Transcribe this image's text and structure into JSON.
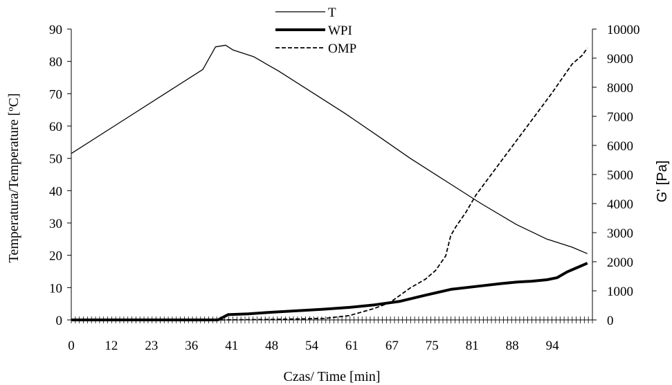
{
  "chart_data": {
    "type": "line",
    "xlabel": "Czas/ Time [min]",
    "ylabel_left": "Temperatura/Temperature [ºC]",
    "ylabel_right": "G' [Pa]",
    "x_tick_labels": [
      "0",
      "12",
      "23",
      "36",
      "41",
      "48",
      "54",
      "61",
      "67",
      "75",
      "81",
      "88",
      "94"
    ],
    "xlim": [
      0,
      103
    ],
    "ylim_left": [
      0,
      90
    ],
    "ylim_right": [
      0,
      10000
    ],
    "yticks_left": [
      0,
      10,
      20,
      30,
      40,
      50,
      60,
      70,
      80,
      90
    ],
    "yticks_right": [
      0,
      1000,
      2000,
      3000,
      4000,
      5000,
      6000,
      7000,
      8000,
      9000,
      10000
    ],
    "legend_position": "top-center",
    "series": [
      {
        "name": "T",
        "axis": "left",
        "style": "thin-solid",
        "x": [
          0,
          10,
          20,
          26,
          28.5,
          30.5,
          32,
          36,
          41,
          48,
          54,
          61,
          67,
          75,
          81,
          88,
          94,
          99,
          102
        ],
        "values": [
          51.5,
          61.5,
          71.5,
          77.5,
          84.5,
          85,
          83.5,
          81.5,
          77,
          70,
          64,
          56.5,
          50,
          42,
          36,
          29.5,
          25,
          22.5,
          20.5
        ]
      },
      {
        "name": "WPI",
        "axis": "right",
        "style": "thick-solid",
        "x": [
          0,
          29,
          31,
          35,
          40,
          45,
          50,
          55,
          60,
          65,
          70,
          75,
          80,
          85,
          88,
          91,
          94,
          96,
          98,
          100,
          102
        ],
        "values": [
          0,
          0,
          180,
          210,
          270,
          320,
          370,
          430,
          520,
          640,
          850,
          1050,
          1150,
          1250,
          1300,
          1330,
          1380,
          1450,
          1650,
          1800,
          1950
        ]
      },
      {
        "name": "OMP",
        "axis": "right",
        "style": "dashed",
        "x": [
          0,
          30,
          40,
          50,
          55,
          60,
          63,
          65,
          67,
          70,
          72,
          74,
          75,
          76,
          78,
          80,
          83,
          86,
          89,
          92,
          95,
          97,
          99,
          101,
          102
        ],
        "values": [
          0,
          0,
          20,
          50,
          150,
          400,
          600,
          850,
          1100,
          1400,
          1700,
          2200,
          2900,
          3200,
          3700,
          4300,
          5000,
          5700,
          6400,
          7100,
          7800,
          8300,
          8800,
          9100,
          9350
        ]
      }
    ]
  }
}
